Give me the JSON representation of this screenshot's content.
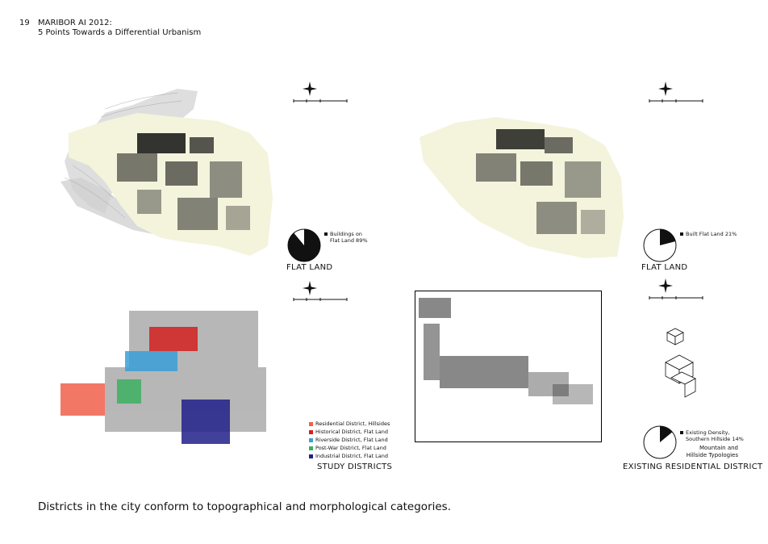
{
  "header": {
    "page_number": "19",
    "title_line1": "MARIBOR AI 2012:",
    "title_line2": "5 Points Towards a Differential Urbanism"
  },
  "panels": {
    "top_left": {
      "pie_label_line1": "Buildings on",
      "pie_label_line2": "Flat Land 89%",
      "pie_fraction": 0.89,
      "caption": "FLAT LAND"
    },
    "top_right": {
      "pie_label": "Built Flat Land 21%",
      "pie_fraction": 0.21,
      "caption": "FLAT LAND"
    },
    "bottom_left": {
      "legend": [
        {
          "label": "Residential District, Hillsides",
          "color": "#f0604a"
        },
        {
          "label": "Historical District, Flat Land",
          "color": "#d42020"
        },
        {
          "label": "Riverside District, Flat Land",
          "color": "#3aa0d8"
        },
        {
          "label": "Post-War District, Flat Land",
          "color": "#3cb060"
        },
        {
          "label": "Industrial District, Flat Land",
          "color": "#20208a"
        }
      ],
      "caption": "STUDY DISTRICTS"
    },
    "bottom_right": {
      "pie_label_line1": "Existing Density,",
      "pie_label_line2": "Southern Hillside 14%",
      "pie_fraction": 0.14,
      "typology_line1": "Mountain and",
      "typology_line2": "Hillside Typologies",
      "caption": "EXISTING RESIDENTIAL DISTRICT"
    }
  },
  "footer_caption": "Districts in the city conform to topographical and morphological categories.",
  "colors": {
    "flat_land": "#f4f3dc",
    "terrain": "#c8c8c8",
    "buildings": "#111111"
  },
  "icons": [
    "north-arrow-icon",
    "scale-bar-icon",
    "pie-chart-icon"
  ]
}
